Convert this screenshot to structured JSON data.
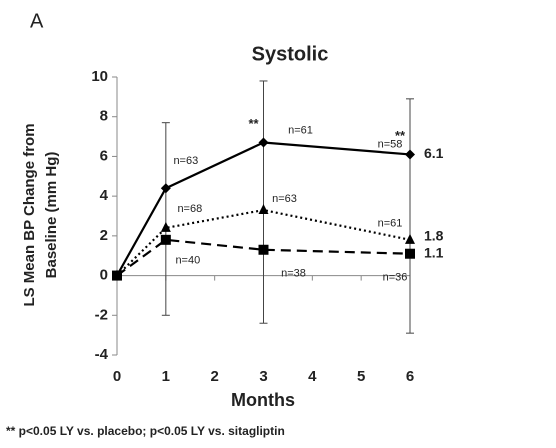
{
  "panel_label": "A",
  "footnote": "** p<0.05 LY vs. placebo; p<0.05 LY vs. sitagliptin",
  "chart_data": {
    "type": "line",
    "title": "Systolic",
    "y_label": [
      "LS Mean BP Change from",
      "Baseline (mm Hg)"
    ],
    "x_label": "Months",
    "x": [
      0,
      1,
      3,
      6
    ],
    "xlim": [
      0,
      6
    ],
    "xticks": [
      0,
      1,
      2,
      3,
      4,
      5,
      6
    ],
    "ylim": [
      -4,
      10
    ],
    "yticks": [
      -4,
      -2,
      0,
      2,
      4,
      6,
      8,
      10
    ],
    "series": [
      {
        "color": "#000000",
        "line_style": "solid",
        "marker": "diamond",
        "values": [
          0,
          4.4,
          6.7,
          6.1
        ],
        "n_labels": [
          null,
          "n=63",
          "n=61",
          "n=58"
        ]
      },
      {
        "color": "#000000",
        "line_style": "dotted",
        "marker": "triangle",
        "values": [
          0,
          2.4,
          3.3,
          1.8
        ],
        "n_labels": [
          null,
          "n=68",
          "n=63",
          "n=61"
        ]
      },
      {
        "color": "#000000",
        "line_style": "dashed",
        "marker": "square",
        "values": [
          0,
          1.8,
          1.3,
          1.1
        ],
        "n_labels": [
          null,
          "n=40",
          "n=38",
          "n=36"
        ]
      }
    ],
    "error_bars": {
      "x": [
        1,
        3,
        6
      ],
      "low": [
        -2,
        -2.4,
        -2.9
      ],
      "high": [
        7.7,
        9.8,
        8.9
      ]
    },
    "significance": {
      "x": [
        3,
        6
      ],
      "labels": [
        "**",
        "**"
      ]
    }
  }
}
